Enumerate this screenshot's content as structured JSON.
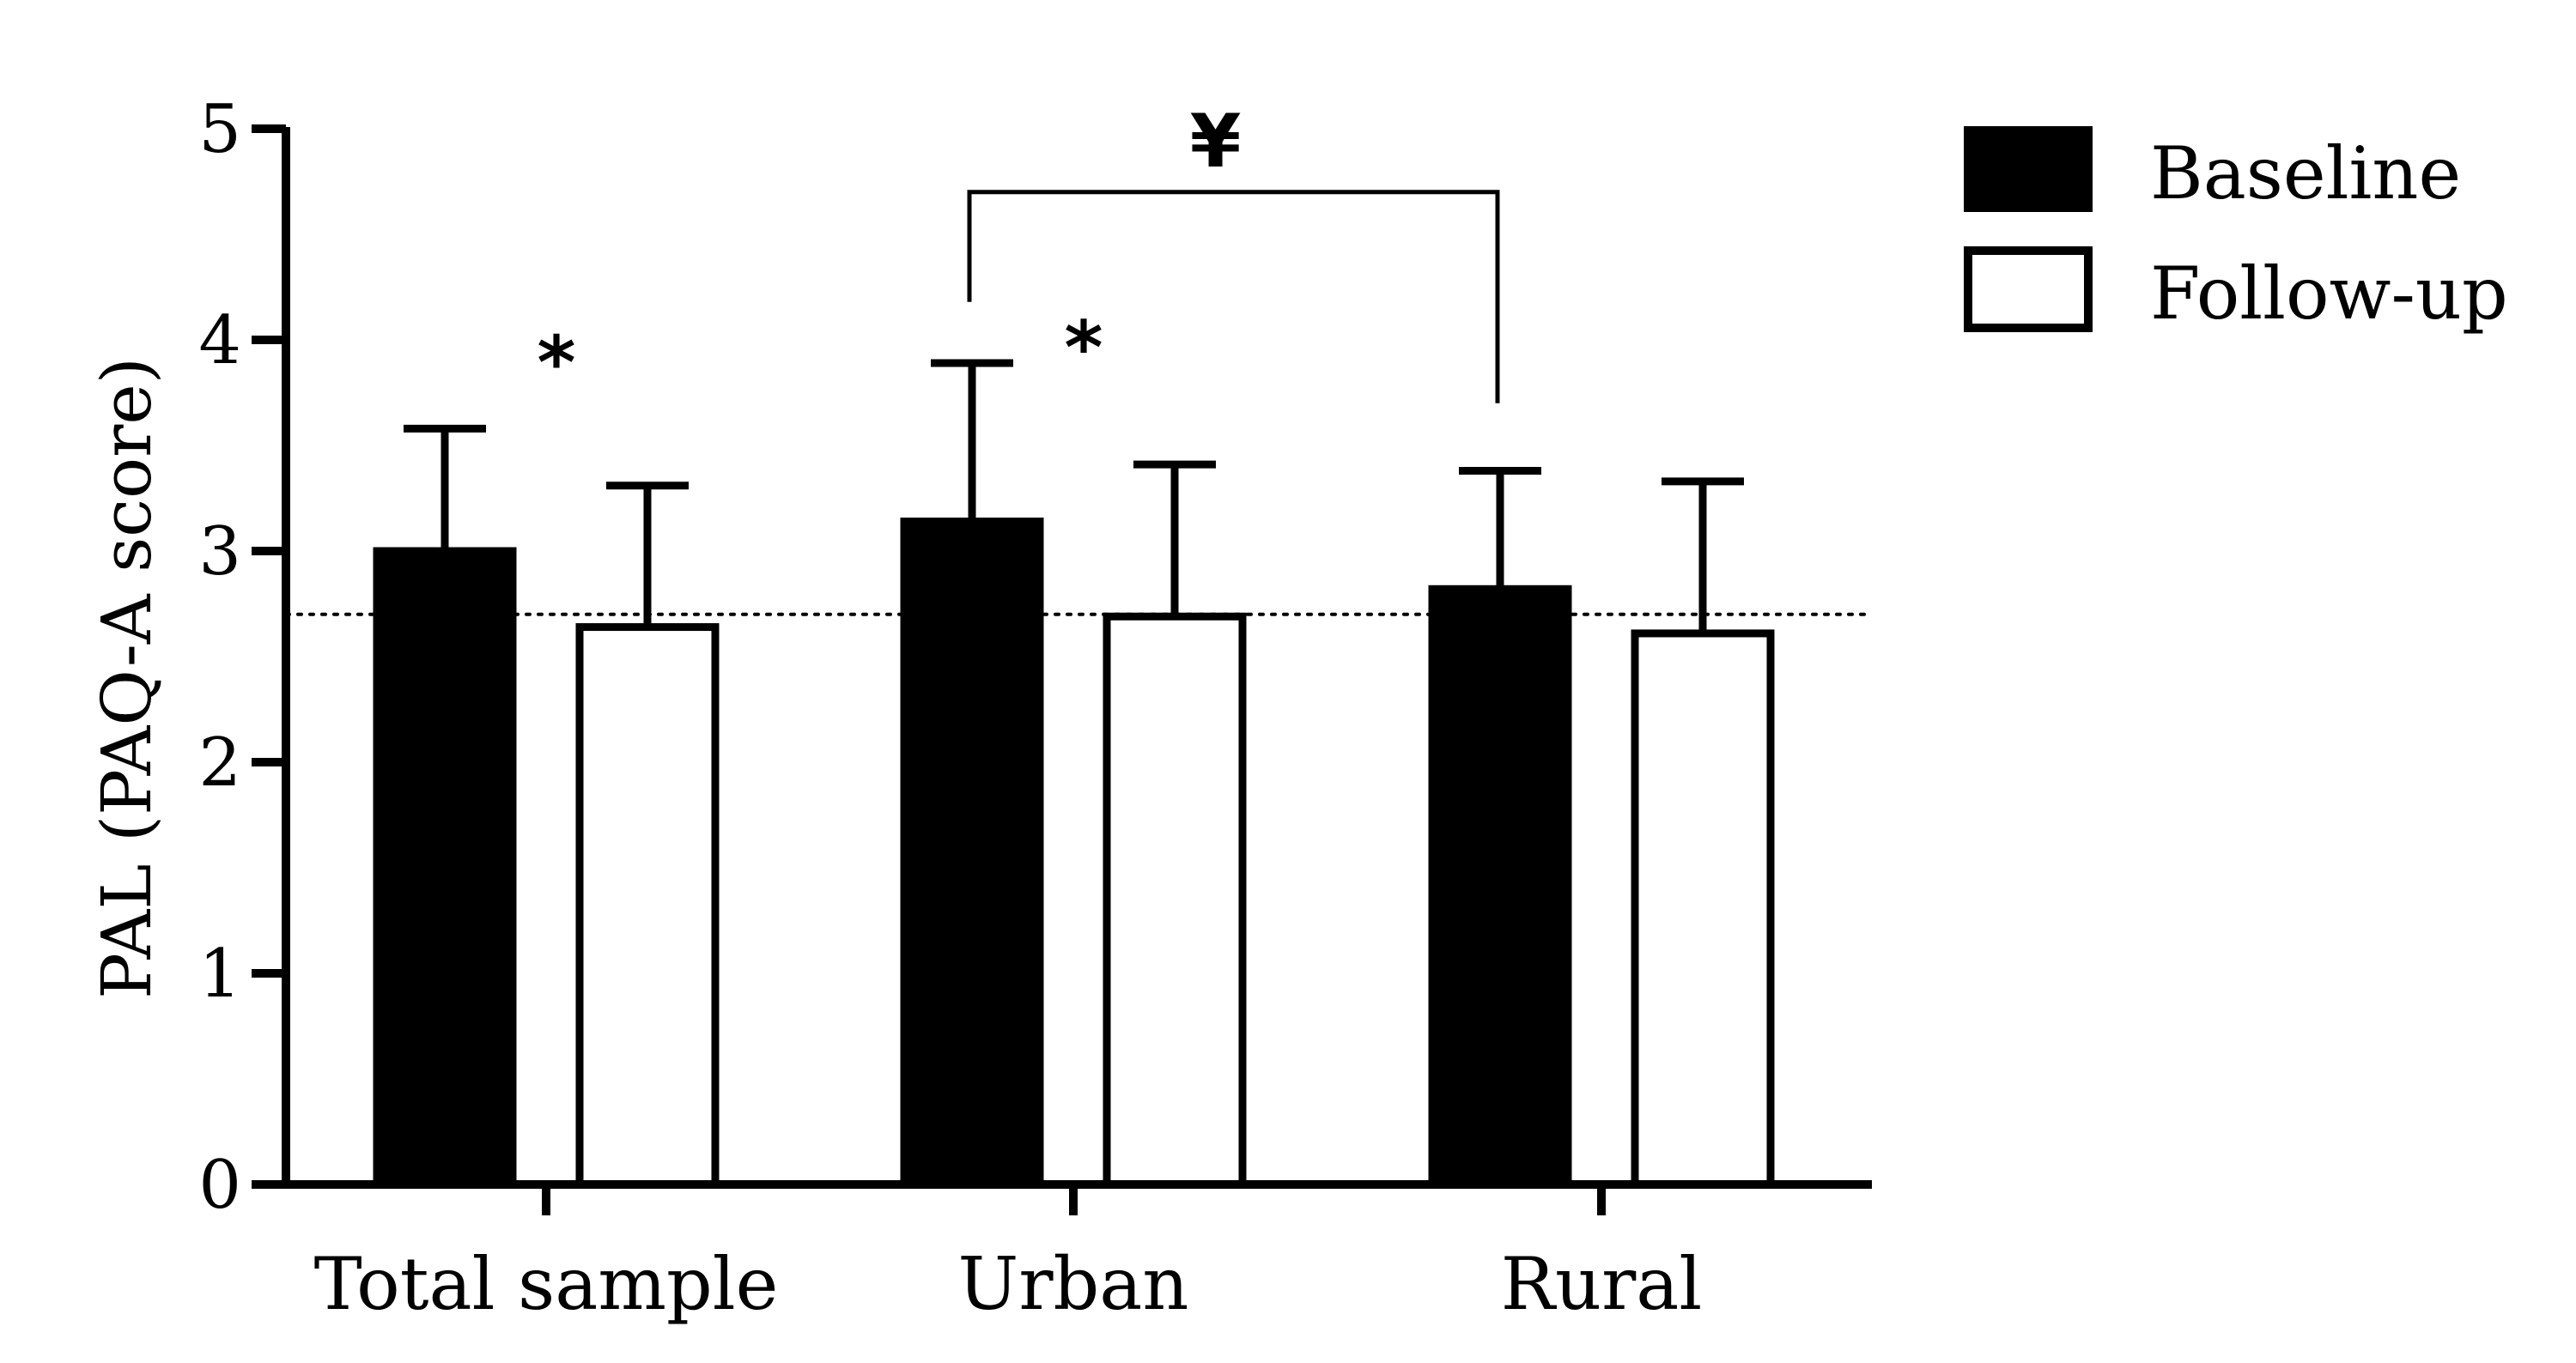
{
  "chart_data": {
    "type": "bar",
    "ylabel": "PAL (PAQ-A score)",
    "xlabel": "",
    "ylim": [
      0,
      5
    ],
    "yticks": [
      "0",
      "1",
      "2",
      "3",
      "4",
      "5"
    ],
    "categories": [
      "Total sample",
      "Urban",
      "Rural"
    ],
    "series": [
      {
        "name": "Baseline",
        "values": [
          3.0,
          3.14,
          2.82
        ],
        "error": [
          0.58,
          0.75,
          0.56
        ],
        "fill": "#000000"
      },
      {
        "name": "Follow-up",
        "values": [
          2.64,
          2.69,
          2.61
        ],
        "error": [
          0.67,
          0.72,
          0.72
        ],
        "fill": "#ffffff"
      }
    ],
    "reference_line": {
      "value": 2.7,
      "style": "dotted"
    },
    "annotations": [
      {
        "text": "*",
        "category": "Total sample",
        "y": 3.95
      },
      {
        "text": "*",
        "category": "Urban",
        "y": 4.02
      },
      {
        "text": "¥",
        "between": [
          "Urban",
          "Rural"
        ],
        "y": 5.0
      }
    ],
    "significance_bracket": {
      "from": "Urban",
      "to": "Rural",
      "y": 4.7,
      "left_end": 4.18,
      "right_end": 3.7
    },
    "legend_placement": "top-right",
    "grid": false
  }
}
